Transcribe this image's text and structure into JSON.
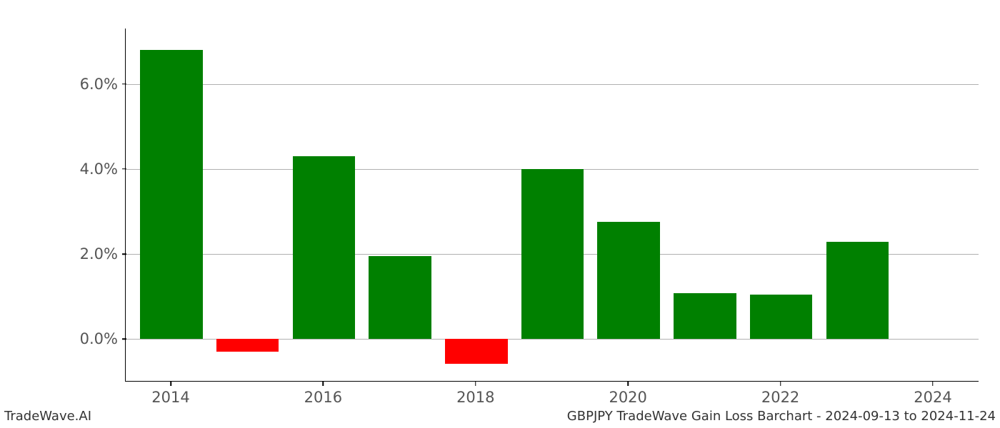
{
  "chart": {
    "type": "bar",
    "title": "",
    "footer_left": "TradeWave.AI",
    "footer_right": "GBPJPY TradeWave Gain Loss Barchart - 2024-09-13 to 2024-11-24",
    "background_color": "#ffffff",
    "grid_color": "#b0b0b0",
    "axis_color": "#000000",
    "tick_label_color": "#555555",
    "tick_label_fontsize": 21,
    "footer_fontsize": 18,
    "positive_color": "#008000",
    "negative_color": "#ff0000",
    "xlim_years": [
      2013.4,
      2024.6
    ],
    "ylim": [
      -1.0,
      7.3
    ],
    "ytick_values": [
      0.0,
      2.0,
      4.0,
      6.0
    ],
    "ytick_labels": [
      "0.0%",
      "2.0%",
      "4.0%",
      "6.0%"
    ],
    "xtick_values": [
      2014,
      2016,
      2018,
      2020,
      2022,
      2024
    ],
    "xtick_labels": [
      "2014",
      "2016",
      "2018",
      "2020",
      "2022",
      "2024"
    ],
    "bar_width_years": 0.82,
    "data": {
      "years": [
        2014,
        2015,
        2016,
        2017,
        2018,
        2019,
        2020,
        2021,
        2022,
        2023
      ],
      "values": [
        6.8,
        -0.3,
        4.3,
        1.95,
        -0.58,
        4.0,
        2.75,
        1.08,
        1.05,
        2.28
      ]
    }
  }
}
